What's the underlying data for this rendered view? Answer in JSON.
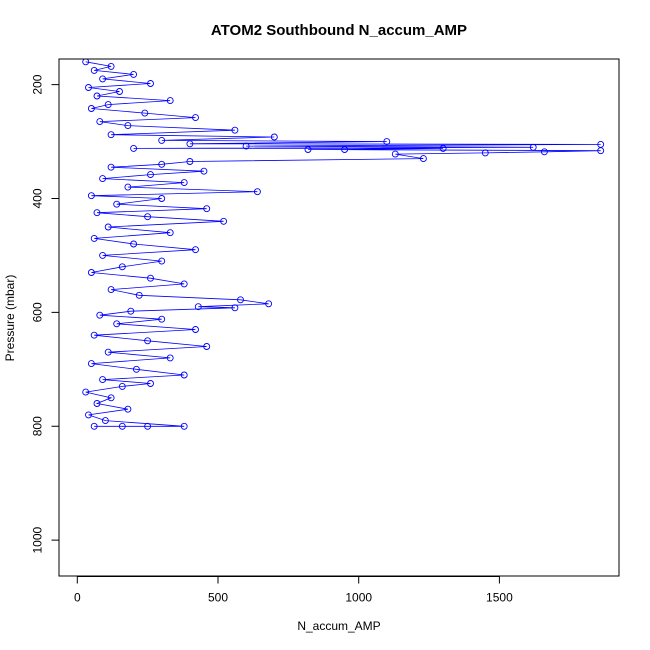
{
  "chart_data": {
    "type": "scatter",
    "title": "ATOM2 Southbound N_accum_AMP",
    "xlabel": "N_accum_AMP",
    "ylabel": "Pressure (mbar)",
    "xlim": [
      -65,
      1925
    ],
    "ylim": [
      1063,
      155
    ],
    "y_reversed": true,
    "x_ticks": [
      0,
      500,
      1000,
      1500
    ],
    "y_ticks": [
      200,
      400,
      600,
      800,
      1000
    ],
    "x_tick_labels": [
      "0",
      "500",
      "1000",
      "1500"
    ],
    "y_tick_labels": [
      "200",
      "400",
      "600",
      "800",
      "1000"
    ],
    "grid": false,
    "legend": "none",
    "color": "#0000ff",
    "marker": "open-circle",
    "connected": true,
    "series": [
      {
        "values_note": "",
        "points": [
          [
            30,
            160
          ],
          [
            120,
            168
          ],
          [
            60,
            175
          ],
          [
            200,
            182
          ],
          [
            90,
            190
          ],
          [
            260,
            198
          ],
          [
            40,
            205
          ],
          [
            150,
            212
          ],
          [
            70,
            220
          ],
          [
            330,
            228
          ],
          [
            110,
            235
          ],
          [
            50,
            242
          ],
          [
            240,
            250
          ],
          [
            420,
            258
          ],
          [
            80,
            265
          ],
          [
            180,
            272
          ],
          [
            560,
            280
          ],
          [
            120,
            288
          ],
          [
            700,
            292
          ],
          [
            300,
            298
          ],
          [
            1100,
            300
          ],
          [
            400,
            304
          ],
          [
            1860,
            305
          ],
          [
            600,
            308
          ],
          [
            1620,
            310
          ],
          [
            200,
            312
          ],
          [
            1300,
            312
          ],
          [
            950,
            314
          ],
          [
            820,
            314
          ],
          [
            1860,
            316
          ],
          [
            1660,
            318
          ],
          [
            1450,
            320
          ],
          [
            1130,
            322
          ],
          [
            1230,
            330
          ],
          [
            400,
            335
          ],
          [
            300,
            340
          ],
          [
            120,
            345
          ],
          [
            450,
            352
          ],
          [
            260,
            358
          ],
          [
            90,
            365
          ],
          [
            380,
            372
          ],
          [
            180,
            380
          ],
          [
            640,
            388
          ],
          [
            50,
            395
          ],
          [
            300,
            400
          ],
          [
            140,
            410
          ],
          [
            460,
            418
          ],
          [
            70,
            425
          ],
          [
            250,
            432
          ],
          [
            520,
            440
          ],
          [
            110,
            450
          ],
          [
            330,
            460
          ],
          [
            60,
            470
          ],
          [
            200,
            480
          ],
          [
            420,
            490
          ],
          [
            90,
            500
          ],
          [
            300,
            510
          ],
          [
            160,
            520
          ],
          [
            50,
            530
          ],
          [
            260,
            540
          ],
          [
            380,
            550
          ],
          [
            120,
            560
          ],
          [
            220,
            570
          ],
          [
            580,
            578
          ],
          [
            680,
            585
          ],
          [
            430,
            590
          ],
          [
            560,
            592
          ],
          [
            190,
            598
          ],
          [
            80,
            605
          ],
          [
            300,
            612
          ],
          [
            140,
            620
          ],
          [
            420,
            630
          ],
          [
            60,
            640
          ],
          [
            250,
            650
          ],
          [
            460,
            660
          ],
          [
            110,
            670
          ],
          [
            330,
            680
          ],
          [
            50,
            690
          ],
          [
            210,
            700
          ],
          [
            380,
            710
          ],
          [
            90,
            718
          ],
          [
            260,
            725
          ],
          [
            160,
            730
          ],
          [
            30,
            740
          ],
          [
            120,
            750
          ],
          [
            70,
            760
          ],
          [
            180,
            770
          ],
          [
            40,
            780
          ],
          [
            100,
            790
          ],
          [
            380,
            800
          ],
          [
            250,
            800
          ],
          [
            160,
            800
          ],
          [
            60,
            800
          ]
        ]
      }
    ]
  }
}
